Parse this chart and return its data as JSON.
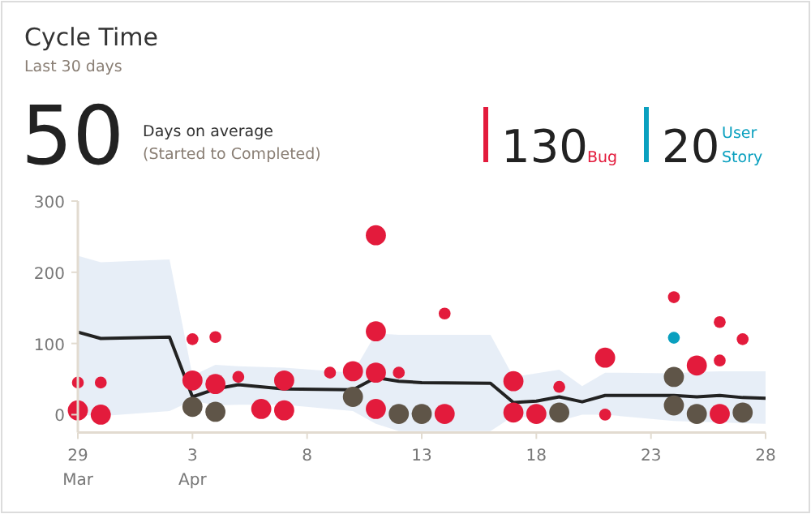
{
  "chart_data": {
    "type": "bubble",
    "title": "Cycle Time",
    "subtitle": "Last 30 days",
    "annotations": [
      "50",
      "Days on average",
      "(Started to Completed)",
      "130",
      "20"
    ],
    "legend": "top right",
    "xlim": [
      "--03-29",
      "--04-28"
    ],
    "xticks": [
      {
        "value": "--03-29",
        "label": "29 Mar"
      },
      {
        "value": "--04-03",
        "label": "3 Apr"
      },
      {
        "value": "--04-08",
        "label": "8"
      },
      {
        "value": "--04-13",
        "label": "13"
      },
      {
        "value": "--04-18",
        "label": "18"
      },
      {
        "value": "--04-23",
        "label": "23"
      },
      {
        "value": "--04-28",
        "label": "28"
      }
    ],
    "ylim": [
      -25,
      300
    ],
    "yticks": [
      0,
      100,
      200,
      300
    ],
    "series": [
      {
        "type": "line",
        "color": "#222222",
        "line_style": "solid",
        "marker": "none",
        "x": [
          "--03-29",
          "--03-30",
          "--04-02",
          "--04-03",
          "--04-04",
          "--04-05",
          "--04-07",
          "--04-10",
          "--04-11",
          "--04-12",
          "--04-13",
          "--04-16",
          "--04-17",
          "--04-18",
          "--04-19",
          "--04-20",
          "--04-21",
          "--04-24",
          "--04-25",
          "--04-26",
          "--04-27",
          "--04-28"
        ],
        "values": [
          116,
          107,
          109,
          25,
          36,
          42,
          36,
          35,
          52,
          47,
          45,
          44,
          17,
          19,
          25,
          18,
          27,
          27,
          25,
          27,
          24,
          23
        ],
        "lower": [
          0,
          -2,
          5,
          20,
          13,
          14,
          14,
          5,
          -13,
          -23,
          -23,
          -23,
          -2,
          -5,
          -9,
          0,
          0,
          -9,
          -10,
          -11,
          -12,
          -13
        ],
        "upper": [
          223,
          214,
          218,
          55,
          70,
          68,
          66,
          59,
          114,
          112,
          112,
          112,
          53,
          58,
          63,
          40,
          59,
          58,
          60,
          61,
          61,
          61
        ]
      },
      {
        "name": "Bug",
        "color": "#e31b3c",
        "x": [
          "--03-29",
          "--03-29",
          "--03-30",
          "--03-30",
          "--04-03",
          "--04-03",
          "--04-04",
          "--04-04",
          "--04-05",
          "--04-06",
          "--04-07",
          "--04-07",
          "--04-09",
          "--04-10",
          "--04-11",
          "--04-11",
          "--04-11",
          "--04-11",
          "--04-12",
          "--04-14",
          "--04-14",
          "--04-17",
          "--04-17",
          "--04-18",
          "--04-19",
          "--04-21",
          "--04-21",
          "--04-24",
          "--04-25",
          "--04-26",
          "--04-26",
          "--04-26",
          "--04-27"
        ],
        "values": [
          45,
          6,
          45,
          0,
          106,
          48,
          109,
          43,
          53,
          8,
          48,
          6,
          59,
          61,
          252,
          117,
          59,
          8,
          59,
          1,
          142,
          47,
          3,
          1,
          39,
          80,
          0,
          165,
          69,
          130,
          76,
          1,
          106
        ],
        "sizes": [
          0.35,
          1,
          0.35,
          1,
          0.35,
          1,
          0.35,
          1,
          0.35,
          1,
          1,
          1,
          0.35,
          1,
          1,
          1,
          1,
          1,
          0.35,
          1,
          0.35,
          1,
          1,
          1,
          0.35,
          1,
          0.35,
          0.35,
          1,
          0.35,
          0.35,
          1,
          0.35
        ]
      },
      {
        "name": "User Story",
        "color": "#0aa0bf",
        "x": [
          "--04-24"
        ],
        "values": [
          108
        ],
        "sizes": [
          0.35
        ]
      },
      {
        "color": "#5f5548",
        "x": [
          "--04-03",
          "--04-04",
          "--04-10",
          "--04-12",
          "--04-13",
          "--04-19",
          "--04-24",
          "--04-24",
          "--04-25",
          "--04-27"
        ],
        "values": [
          11,
          4,
          25,
          1,
          1,
          3,
          53,
          13,
          1,
          3
        ],
        "sizes": [
          1,
          1,
          1,
          1,
          1,
          1,
          1,
          1,
          1,
          1
        ]
      }
    ]
  }
}
